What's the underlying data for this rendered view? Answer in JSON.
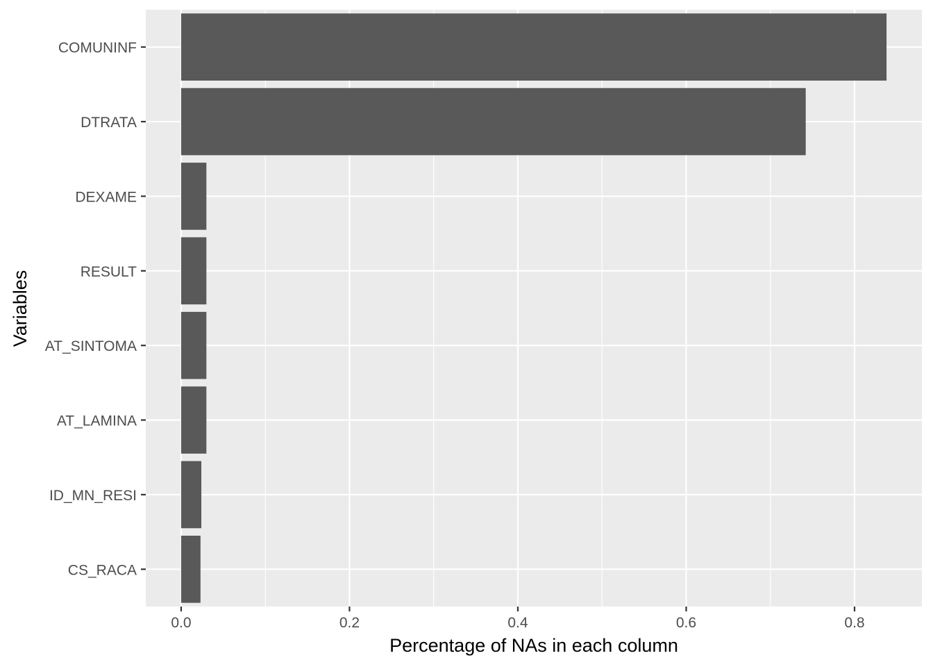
{
  "chart_data": {
    "type": "bar",
    "orientation": "horizontal",
    "categories": [
      "COMUNINF",
      "DTRATA",
      "DEXAME",
      "RESULT",
      "AT_SINTOMA",
      "AT_LAMINA",
      "ID_MN_RESI",
      "CS_RACA"
    ],
    "values": [
      0.838,
      0.742,
      0.03,
      0.03,
      0.03,
      0.03,
      0.024,
      0.023
    ],
    "xlabel": "Percentage of NAs in each column",
    "ylabel": "Variables",
    "xlim": [
      -0.042,
      0.88
    ],
    "x_ticks": [
      0.0,
      0.2,
      0.4,
      0.6,
      0.8
    ],
    "x_tick_labels": [
      "0.0",
      "0.2",
      "0.4",
      "0.6",
      "0.8"
    ],
    "grid": true,
    "legend": "none",
    "colors": {
      "bar": "#595959",
      "panel_background": "#ebebeb",
      "grid": "#ffffff",
      "tick_label": "#4d4d4d",
      "axis_title": "#000000"
    }
  }
}
